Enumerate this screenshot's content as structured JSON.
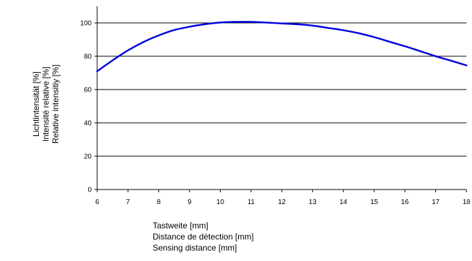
{
  "chart_data": {
    "type": "line",
    "title": "",
    "x_label_lines": [
      "Tastweite [mm]",
      "Distance de détection [mm]",
      "Sensing distance [mm]"
    ],
    "y_label_lines": [
      "Lichtintensität [%]",
      "Intensité relative [%]",
      "Relative intensitiy [%]"
    ],
    "x_ticks": [
      "6",
      "7",
      "8",
      "9",
      "10",
      "11",
      "12",
      "13",
      "14",
      "15",
      "16",
      "17",
      "18"
    ],
    "y_ticks": [
      "0",
      "20",
      "40",
      "60",
      "80",
      "100"
    ],
    "xlim": [
      6,
      18
    ],
    "ylim": [
      0,
      110
    ],
    "grid": "horizontal",
    "series_color": "#0000dd",
    "series": [
      {
        "x": [
          6,
          6.5,
          7,
          7.5,
          8,
          8.5,
          9,
          9.5,
          10,
          10.5,
          11,
          11.5,
          12,
          12.5,
          13,
          13.5,
          14,
          14.5,
          15,
          15.5,
          16,
          16.5,
          17,
          17.5,
          18
        ],
        "values": [
          71,
          77.5,
          83.5,
          88.5,
          92.5,
          95.7,
          97.7,
          99.2,
          100.2,
          100.6,
          100.6,
          100.2,
          99.7,
          99.2,
          98.4,
          97.0,
          95.6,
          93.8,
          91.5,
          88.7,
          86.0,
          83.0,
          80.0,
          77.3,
          74.5
        ]
      }
    ]
  }
}
